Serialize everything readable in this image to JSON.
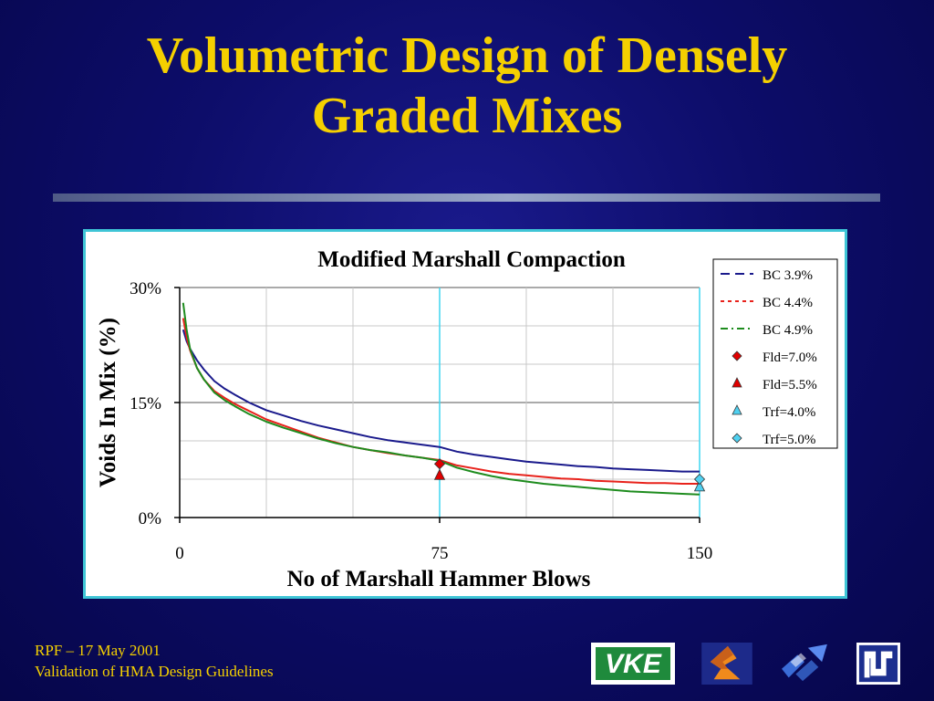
{
  "slide": {
    "title_line1": "Volumetric Design of Densely",
    "title_line2": "Graded Mixes",
    "footer_line1": "RPF – 17 May 2001",
    "footer_line2": "Validation of HMA Design Guidelines"
  },
  "logos": [
    {
      "name": "vke-logo",
      "text": "VKE"
    },
    {
      "name": "orange-chevron-logo"
    },
    {
      "name": "blue-arrows-logo"
    },
    {
      "name": "ns-logo"
    }
  ],
  "colors": {
    "background": "#0d0d6a",
    "title": "#f5d000",
    "chart_border": "#3fc5d6",
    "bc39": "#1a1a8c",
    "bc44": "#e8221b",
    "bc49": "#1e8c1e",
    "fld": "#e00000",
    "trf": "#4fd0f0"
  },
  "chart_data": {
    "type": "line",
    "title": "Modified Marshall Compaction",
    "xlabel": "No of Marshall Hammer Blows",
    "ylabel": "Voids In Mix (%)",
    "xlim": [
      0,
      150
    ],
    "ylim": [
      0,
      30
    ],
    "x_ticks": [
      "0",
      "75",
      "150"
    ],
    "y_ticks": [
      "0%",
      "15%",
      "30%"
    ],
    "grid": true,
    "legend_position": "top-right",
    "x": [
      1,
      2,
      3,
      5,
      7,
      10,
      13,
      16,
      20,
      25,
      30,
      35,
      40,
      45,
      50,
      55,
      60,
      65,
      70,
      75,
      80,
      85,
      90,
      95,
      100,
      105,
      110,
      115,
      120,
      125,
      130,
      135,
      140,
      145,
      150
    ],
    "series": [
      {
        "name": "BC 3.9%",
        "style": "long-dash",
        "color": "#1a1a8c",
        "values": [
          24.5,
          23.0,
          22.0,
          20.5,
          19.3,
          17.8,
          16.8,
          16.0,
          15.0,
          14.0,
          13.3,
          12.6,
          12.0,
          11.5,
          11.0,
          10.5,
          10.1,
          9.8,
          9.5,
          9.2,
          8.6,
          8.2,
          7.9,
          7.6,
          7.3,
          7.1,
          6.9,
          6.7,
          6.6,
          6.4,
          6.3,
          6.2,
          6.1,
          6.0,
          6.0
        ]
      },
      {
        "name": "BC 4.4%",
        "style": "short-dash",
        "color": "#e8221b",
        "values": [
          26.0,
          23.5,
          21.8,
          19.5,
          18.0,
          16.5,
          15.6,
          14.8,
          13.9,
          12.8,
          12.0,
          11.2,
          10.4,
          9.8,
          9.2,
          8.8,
          8.4,
          8.1,
          7.8,
          7.5,
          6.8,
          6.4,
          6.0,
          5.7,
          5.5,
          5.3,
          5.1,
          5.0,
          4.8,
          4.7,
          4.6,
          4.5,
          4.5,
          4.4,
          4.4
        ]
      },
      {
        "name": "BC 4.9%",
        "style": "dash-dot",
        "color": "#1e8c1e",
        "values": [
          28.0,
          24.5,
          22.0,
          19.5,
          18.0,
          16.3,
          15.3,
          14.5,
          13.5,
          12.5,
          11.7,
          11.0,
          10.3,
          9.7,
          9.2,
          8.8,
          8.5,
          8.1,
          7.8,
          7.4,
          6.5,
          5.9,
          5.4,
          5.0,
          4.7,
          4.4,
          4.2,
          4.0,
          3.8,
          3.6,
          3.4,
          3.3,
          3.2,
          3.1,
          3.0
        ]
      }
    ],
    "points": [
      {
        "name": "Fld=7.0%",
        "marker": "diamond",
        "color": "#e00000",
        "x": 75,
        "y": 7.0
      },
      {
        "name": "Fld=5.5%",
        "marker": "triangle",
        "color": "#e00000",
        "x": 75,
        "y": 5.5
      },
      {
        "name": "Trf=4.0%",
        "marker": "triangle",
        "color": "#4fd0f0",
        "x": 150,
        "y": 4.0
      },
      {
        "name": "Trf=5.0%",
        "marker": "diamond",
        "color": "#4fd0f0",
        "x": 150,
        "y": 5.0
      }
    ]
  }
}
